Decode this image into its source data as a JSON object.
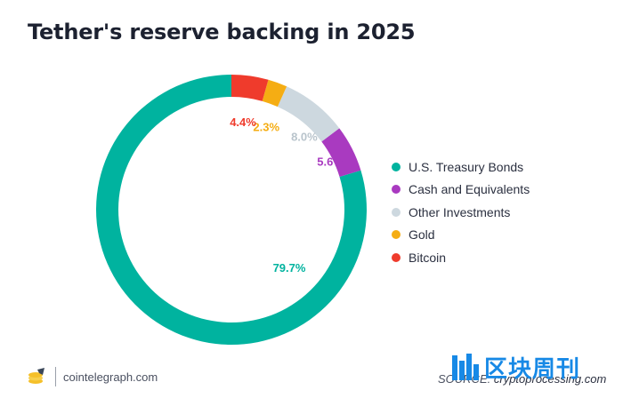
{
  "title": "Tether's reserve backing in 2025",
  "chart_data": {
    "type": "pie",
    "variant": "donut",
    "categories": [
      "U.S. Treasury Bonds",
      "Cash and Equivalents",
      "Other Investments",
      "Gold",
      "Bitcoin"
    ],
    "values": [
      79.7,
      5.6,
      8.0,
      2.3,
      4.4
    ],
    "value_labels": [
      "79.7%",
      "5.6%",
      "8.0%",
      "2.3%",
      "4.4%"
    ],
    "colors": [
      "#00b39f",
      "#a93ac0",
      "#cdd8df",
      "#f5ad13",
      "#ef3b2c"
    ],
    "start": "top",
    "direction": "counterclockwise",
    "legend_position": "right"
  },
  "footer": {
    "site": "cointelegraph.com",
    "source_prefix": "SOURCE:",
    "source_name": "cryptoprocessing.com"
  },
  "watermark": {
    "text": "区块周刊"
  }
}
